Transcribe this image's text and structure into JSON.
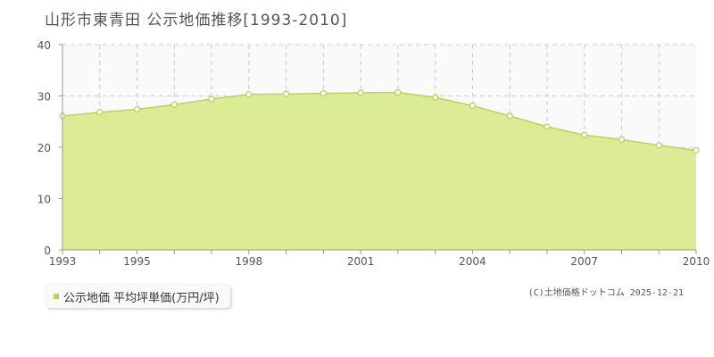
{
  "header": {
    "title": "山形市東青田 公示地価推移[1993-2010]"
  },
  "legend": {
    "label": "公示地価 平均坪単価(万円/坪)"
  },
  "footer": {
    "credit": "(C)土地価格ドットコム 2025-12-21"
  },
  "colors": {
    "fill": "#dcec96",
    "line": "#b9d452",
    "marker_fill": "#ffffff",
    "grid": "#cccccc",
    "plot_bg": "#fafafa"
  },
  "chart_data": {
    "type": "area",
    "title": "山形市東青田 公示地価推移[1993-2010]",
    "xlabel": "",
    "ylabel": "",
    "xlim": [
      1993,
      2010
    ],
    "ylim": [
      0,
      40
    ],
    "y_ticks": [
      0,
      10,
      20,
      30,
      40
    ],
    "x_tick_labels": [
      1993,
      1995,
      1998,
      2001,
      2004,
      2007,
      2010
    ],
    "grid": true,
    "legend_position": "bottom-left",
    "series": [
      {
        "name": "公示地価 平均坪単価(万円/坪)",
        "x": [
          1993,
          1994,
          1995,
          1996,
          1997,
          1998,
          1999,
          2000,
          2001,
          2002,
          2003,
          2004,
          2005,
          2006,
          2007,
          2008,
          2009,
          2010
        ],
        "values": [
          26.1,
          26.8,
          27.4,
          28.3,
          29.4,
          30.3,
          30.4,
          30.5,
          30.6,
          30.7,
          29.7,
          28.1,
          26.1,
          24.0,
          22.4,
          21.5,
          20.4,
          19.4
        ]
      }
    ]
  }
}
